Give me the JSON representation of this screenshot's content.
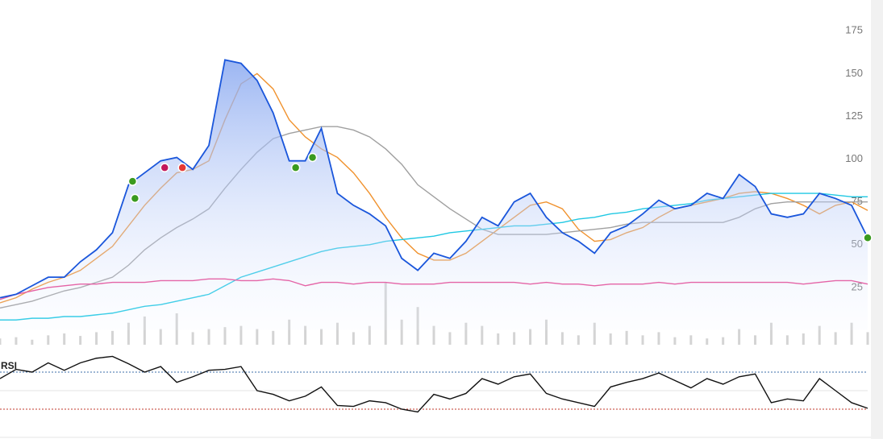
{
  "chart_data": {
    "type": "line",
    "ylim": [
      0,
      193
    ],
    "yticks": [
      25,
      50,
      75,
      100,
      125,
      150,
      175
    ],
    "series": [
      {
        "color": "#f0922e",
        "values": [
          16,
          19,
          24,
          28,
          31,
          35,
          42,
          49,
          61,
          73,
          83,
          92,
          94,
          99,
          123,
          144,
          150,
          141,
          123,
          113,
          106,
          101,
          92,
          80,
          66,
          54,
          45,
          41,
          41,
          45,
          52,
          59,
          66,
          73,
          75,
          71,
          59,
          52,
          53,
          57,
          60,
          66,
          71,
          73,
          75,
          77,
          80,
          81,
          80,
          77,
          73,
          68,
          73,
          75,
          70
        ]
      },
      {
        "color": "#a0a0a0",
        "values": [
          13,
          15,
          17,
          20,
          23,
          25,
          28,
          31,
          38,
          47,
          54,
          60,
          65,
          71,
          83,
          94,
          104,
          112,
          115,
          117,
          119,
          119,
          117,
          113,
          106,
          97,
          85,
          78,
          71,
          65,
          59,
          56,
          56,
          56,
          56,
          57,
          58,
          59,
          60,
          62,
          63,
          63,
          63,
          63,
          63,
          63,
          66,
          71,
          74,
          75,
          75,
          75,
          75,
          75,
          75
        ]
      },
      {
        "color": "#1fc8e3",
        "values": [
          6,
          6,
          7,
          7,
          8,
          8,
          9,
          10,
          12,
          14,
          15,
          17,
          19,
          21,
          26,
          31,
          34,
          37,
          40,
          43,
          46,
          48,
          49,
          50,
          52,
          53,
          54,
          55,
          57,
          58,
          59,
          60,
          61,
          61,
          62,
          63,
          65,
          66,
          68,
          69,
          71,
          72,
          73,
          74,
          76,
          77,
          78,
          79,
          80,
          80,
          80,
          80,
          79,
          78,
          78
        ]
      },
      {
        "color": "#e83e8c",
        "values": [
          18,
          21,
          23,
          25,
          26,
          27,
          27,
          28,
          28,
          28,
          29,
          29,
          29,
          30,
          30,
          29,
          29,
          30,
          29,
          26,
          28,
          28,
          27,
          28,
          28,
          27,
          27,
          27,
          28,
          28,
          28,
          28,
          28,
          27,
          28,
          27,
          27,
          26,
          27,
          27,
          27,
          28,
          27,
          28,
          28,
          28,
          28,
          28,
          28,
          28,
          27,
          28,
          29,
          29,
          27
        ]
      },
      {
        "color": "#1a56db",
        "fill": true,
        "values": [
          19,
          21,
          26,
          31,
          31,
          40,
          47,
          57,
          85,
          92,
          99,
          101,
          94,
          108,
          158,
          156,
          146,
          127,
          99,
          99,
          118,
          80,
          73,
          68,
          61,
          42,
          35,
          45,
          42,
          52,
          66,
          61,
          75,
          80,
          66,
          57,
          52,
          45,
          57,
          61,
          68,
          76,
          71,
          73,
          80,
          77,
          91,
          84,
          68,
          66,
          68,
          80,
          77,
          73,
          54
        ]
      }
    ],
    "markers": [
      {
        "x": 8.25,
        "value": 87,
        "color": "#3a9a1e"
      },
      {
        "x": 8.4,
        "value": 77,
        "color": "#3a9a1e"
      },
      {
        "x": 10.25,
        "value": 95,
        "color": "#c2185b"
      },
      {
        "x": 11.35,
        "value": 95,
        "color": "#e53935"
      },
      {
        "x": 18.4,
        "value": 95,
        "color": "#3a9a1e"
      },
      {
        "x": 19.45,
        "value": 101,
        "color": "#3a9a1e"
      },
      {
        "x": 54,
        "value": 54,
        "color": "#3a9a1e"
      }
    ],
    "volume": {
      "color": "#d4d4d4",
      "ylim": [
        0,
        100
      ],
      "values": [
        10,
        12,
        8,
        15,
        18,
        14,
        20,
        22,
        35,
        45,
        25,
        50,
        20,
        25,
        28,
        30,
        25,
        22,
        40,
        30,
        25,
        35,
        20,
        30,
        100,
        40,
        60,
        30,
        20,
        35,
        30,
        18,
        20,
        25,
        40,
        20,
        15,
        35,
        18,
        22,
        15,
        20,
        12,
        15,
        10,
        12,
        25,
        15,
        35,
        15,
        18,
        30,
        20,
        35,
        20
      ]
    },
    "rsi": {
      "label": "RSI",
      "ylim": [
        0,
        100
      ],
      "levels": [
        {
          "value": 70,
          "color": "#3b6ea8"
        },
        {
          "value": 50,
          "color": "#e3e3e3"
        },
        {
          "value": 30,
          "color": "#c0392b"
        }
      ],
      "values": [
        63,
        73,
        70,
        80,
        72,
        80,
        85,
        87,
        79,
        70,
        76,
        59,
        65,
        72,
        73,
        76,
        50,
        46,
        39,
        44,
        54,
        34,
        33,
        39,
        37,
        30,
        27,
        46,
        41,
        47,
        63,
        57,
        65,
        68,
        47,
        41,
        37,
        33,
        54,
        59,
        63,
        69,
        61,
        53,
        63,
        57,
        65,
        68,
        37,
        41,
        39,
        63,
        50,
        37,
        31
      ]
    }
  }
}
